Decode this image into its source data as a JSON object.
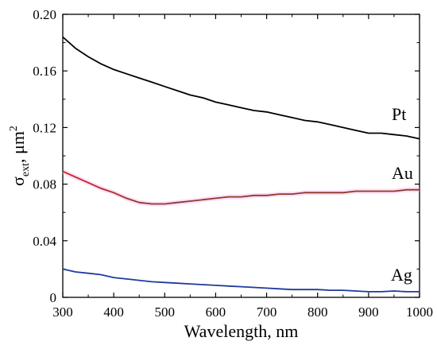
{
  "chart_data": {
    "type": "line",
    "xlabel": "Wavelength, nm",
    "ylabel": {
      "symbol": "σ",
      "subscript": "ext",
      "unit_prefix": ", μm",
      "unit_power": "2"
    },
    "xlim": [
      300,
      1000
    ],
    "ylim": [
      0,
      0.2
    ],
    "xticks": [
      300,
      400,
      500,
      600,
      700,
      800,
      900,
      1000
    ],
    "yticks": [
      {
        "value": 0,
        "label": "0"
      },
      {
        "value": 0.04,
        "label": "0.04"
      },
      {
        "value": 0.08,
        "label": "0.08"
      },
      {
        "value": 0.12,
        "label": "0.12"
      },
      {
        "value": 0.16,
        "label": "0.16"
      },
      {
        "value": 0.2,
        "label": "0.20"
      }
    ],
    "grid": false,
    "legend": "inline labels at right end of each curve",
    "series": [
      {
        "name": "Pt",
        "color": "#000000",
        "x": [
          300,
          325,
          350,
          375,
          400,
          425,
          450,
          475,
          500,
          525,
          550,
          575,
          600,
          625,
          650,
          675,
          700,
          725,
          750,
          775,
          800,
          825,
          850,
          875,
          900,
          925,
          950,
          975,
          1000
        ],
        "y": [
          0.184,
          0.176,
          0.17,
          0.165,
          0.161,
          0.158,
          0.155,
          0.152,
          0.149,
          0.146,
          0.143,
          0.141,
          0.138,
          0.136,
          0.134,
          0.132,
          0.131,
          0.129,
          0.127,
          0.125,
          0.124,
          0.122,
          0.12,
          0.118,
          0.116,
          0.116,
          0.115,
          0.114,
          0.112
        ]
      },
      {
        "name": "Au",
        "color": "#8b3a2a",
        "x": [
          300,
          325,
          350,
          375,
          400,
          425,
          450,
          475,
          500,
          525,
          550,
          575,
          600,
          625,
          650,
          675,
          700,
          725,
          750,
          775,
          800,
          825,
          850,
          875,
          900,
          925,
          950,
          975,
          1000
        ],
        "y": [
          0.089,
          0.085,
          0.081,
          0.077,
          0.074,
          0.07,
          0.067,
          0.066,
          0.066,
          0.067,
          0.068,
          0.069,
          0.07,
          0.071,
          0.071,
          0.072,
          0.072,
          0.073,
          0.073,
          0.074,
          0.074,
          0.074,
          0.074,
          0.075,
          0.075,
          0.075,
          0.075,
          0.076,
          0.076
        ]
      },
      {
        "name": "Ag",
        "color": "#1f3a9e",
        "x": [
          300,
          325,
          350,
          375,
          400,
          425,
          450,
          475,
          500,
          525,
          550,
          575,
          600,
          625,
          650,
          675,
          700,
          725,
          750,
          775,
          800,
          825,
          850,
          875,
          900,
          925,
          950,
          975,
          1000
        ],
        "y": [
          0.02,
          0.018,
          0.017,
          0.016,
          0.014,
          0.013,
          0.012,
          0.011,
          0.0105,
          0.01,
          0.0095,
          0.009,
          0.0085,
          0.008,
          0.0075,
          0.007,
          0.0065,
          0.006,
          0.0055,
          0.0055,
          0.0055,
          0.005,
          0.005,
          0.0045,
          0.004,
          0.004,
          0.0045,
          0.004,
          0.004
        ]
      }
    ],
    "au_start_color": "#d42020",
    "au_glow_color": "#ff9de8"
  }
}
